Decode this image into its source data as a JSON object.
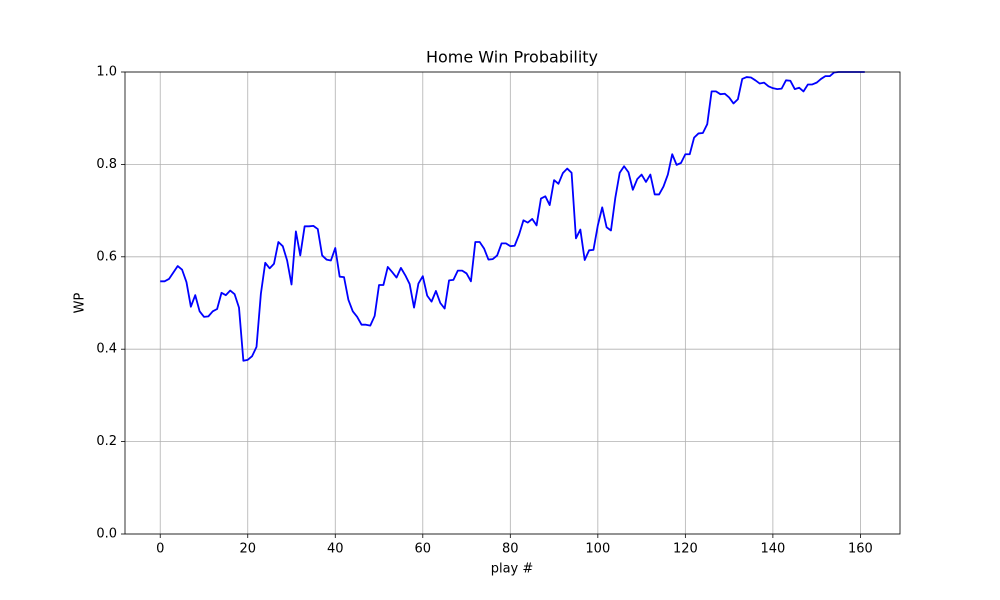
{
  "chart_data": {
    "type": "line",
    "title": "Home Win Probability",
    "x_label": "play #",
    "y_label": "WP",
    "x": [
      0,
      1,
      2,
      3,
      4,
      5,
      6,
      7,
      8,
      9,
      10,
      11,
      12,
      13,
      14,
      15,
      16,
      17,
      18,
      19,
      20,
      21,
      22,
      23,
      24,
      25,
      26,
      27,
      28,
      29,
      30,
      31,
      32,
      33,
      34,
      35,
      36,
      37,
      38,
      39,
      40,
      41,
      42,
      43,
      44,
      45,
      46,
      47,
      48,
      49,
      50,
      51,
      52,
      53,
      54,
      55,
      56,
      57,
      58,
      59,
      60,
      61,
      62,
      63,
      64,
      65,
      66,
      67,
      68,
      69,
      70,
      71,
      72,
      73,
      74,
      75,
      76,
      77,
      78,
      79,
      80,
      81,
      82,
      83,
      84,
      85,
      86,
      87,
      88,
      89,
      90,
      91,
      92,
      93,
      94,
      95,
      96,
      97,
      98,
      99,
      100,
      101,
      102,
      103,
      104,
      105,
      106,
      107,
      108,
      109,
      110,
      111,
      112,
      113,
      114,
      115,
      116,
      117,
      118,
      119,
      120,
      121,
      122,
      123,
      124,
      125,
      126,
      127,
      128,
      129,
      130,
      131,
      132,
      133,
      134,
      135,
      136,
      137,
      138,
      139,
      140,
      141,
      142,
      143,
      144,
      145,
      146,
      147,
      148,
      149,
      150,
      151,
      152,
      153,
      154,
      155,
      156,
      157,
      158,
      159,
      160,
      161
    ],
    "values": [
      0.547,
      0.547,
      0.552,
      0.566,
      0.58,
      0.572,
      0.545,
      0.492,
      0.517,
      0.482,
      0.47,
      0.471,
      0.482,
      0.487,
      0.522,
      0.517,
      0.527,
      0.519,
      0.49,
      0.375,
      0.377,
      0.385,
      0.405,
      0.52,
      0.587,
      0.575,
      0.585,
      0.632,
      0.623,
      0.592,
      0.54,
      0.655,
      0.603,
      0.666,
      0.666,
      0.667,
      0.66,
      0.603,
      0.594,
      0.592,
      0.619,
      0.557,
      0.556,
      0.507,
      0.482,
      0.47,
      0.453,
      0.453,
      0.451,
      0.472,
      0.539,
      0.539,
      0.578,
      0.567,
      0.555,
      0.576,
      0.56,
      0.541,
      0.49,
      0.542,
      0.558,
      0.516,
      0.503,
      0.526,
      0.5,
      0.488,
      0.549,
      0.55,
      0.57,
      0.57,
      0.564,
      0.547,
      0.632,
      0.632,
      0.618,
      0.594,
      0.595,
      0.603,
      0.629,
      0.629,
      0.623,
      0.624,
      0.648,
      0.679,
      0.674,
      0.682,
      0.668,
      0.726,
      0.731,
      0.712,
      0.766,
      0.758,
      0.781,
      0.791,
      0.782,
      0.64,
      0.659,
      0.593,
      0.614,
      0.615,
      0.668,
      0.707,
      0.664,
      0.657,
      0.728,
      0.782,
      0.796,
      0.783,
      0.745,
      0.768,
      0.778,
      0.762,
      0.778,
      0.735,
      0.735,
      0.752,
      0.778,
      0.822,
      0.799,
      0.803,
      0.822,
      0.822,
      0.858,
      0.867,
      0.868,
      0.887,
      0.958,
      0.958,
      0.952,
      0.953,
      0.945,
      0.932,
      0.941,
      0.985,
      0.989,
      0.988,
      0.982,
      0.975,
      0.977,
      0.969,
      0.965,
      0.963,
      0.964,
      0.982,
      0.981,
      0.963,
      0.966,
      0.958,
      0.973,
      0.973,
      0.977,
      0.985,
      0.991,
      0.991,
      0.999,
      1.0,
      1.0,
      1.0,
      1.0,
      1.0,
      1.0,
      1.0
    ],
    "color": "#0000ff",
    "xlim": [
      -8.05,
      169.05
    ],
    "xticks": [
      0,
      20,
      40,
      60,
      80,
      100,
      120,
      140,
      160
    ],
    "ylim": [
      0,
      1
    ],
    "yticks": [
      {
        "value": 0,
        "label": "0.0"
      },
      {
        "value": 0.2,
        "label": "0.2"
      },
      {
        "value": 0.4,
        "label": "0.4"
      },
      {
        "value": 0.6,
        "label": "0.6"
      },
      {
        "value": 0.8,
        "label": "0.8"
      },
      {
        "value": 1,
        "label": "1.0"
      }
    ],
    "grid": true
  }
}
